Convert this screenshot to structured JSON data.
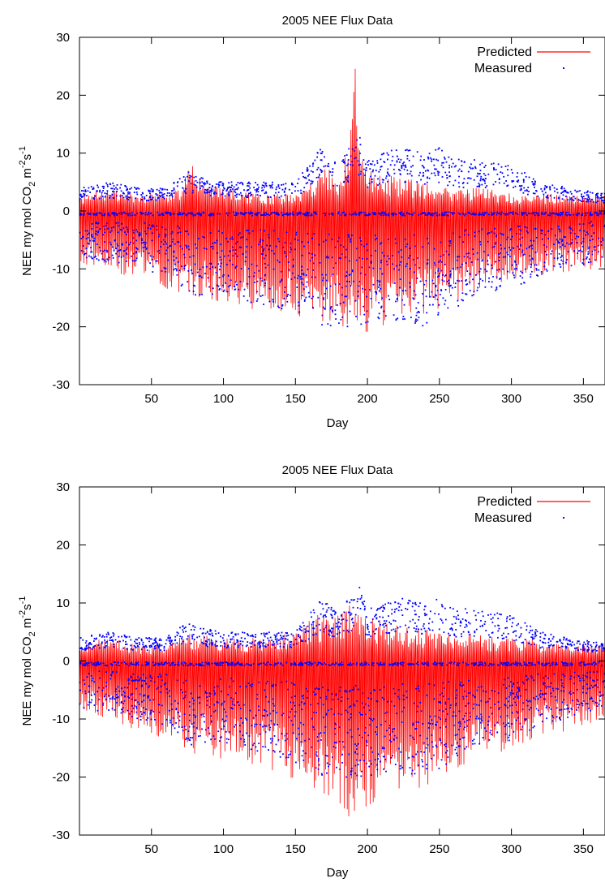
{
  "chart_data": [
    {
      "type": "line",
      "title": "2005 NEE Flux Data",
      "xlabel": "Day",
      "ylabel_parts": {
        "main": "NEE my mol CO",
        "sub": "2",
        "m": " m",
        "msup": "-2",
        "s": "s",
        "ssup": "-1"
      },
      "xlim": [
        0,
        365
      ],
      "ylim": [
        -30,
        30
      ],
      "xticks": [
        50,
        100,
        150,
        200,
        250,
        300,
        350
      ],
      "yticks": [
        -30,
        -20,
        -10,
        0,
        10,
        20,
        30
      ],
      "legend": "top-right",
      "series": [
        {
          "name": "Predicted",
          "kind": "line",
          "color": "#ff0000",
          "daily_max": [
            [
              0,
              3
            ],
            [
              20,
              4
            ],
            [
              40,
              3
            ],
            [
              60,
              3
            ],
            [
              70,
              4
            ],
            [
              75,
              8
            ],
            [
              78,
              9
            ],
            [
              85,
              5
            ],
            [
              100,
              4
            ],
            [
              120,
              3
            ],
            [
              150,
              3
            ],
            [
              160,
              5
            ],
            [
              170,
              8
            ],
            [
              180,
              7
            ],
            [
              188,
              12
            ],
            [
              191,
              30
            ],
            [
              194,
              14
            ],
            [
              200,
              7
            ],
            [
              220,
              6
            ],
            [
              240,
              5
            ],
            [
              260,
              4
            ],
            [
              280,
              4
            ],
            [
              300,
              3
            ],
            [
              320,
              3
            ],
            [
              340,
              3
            ],
            [
              365,
              3
            ]
          ],
          "daily_min": [
            [
              0,
              -9
            ],
            [
              20,
              -10
            ],
            [
              40,
              -12
            ],
            [
              60,
              -14
            ],
            [
              80,
              -15
            ],
            [
              100,
              -16
            ],
            [
              120,
              -17
            ],
            [
              140,
              -18
            ],
            [
              160,
              -19
            ],
            [
              180,
              -20
            ],
            [
              191,
              -23.5
            ],
            [
              200,
              -21
            ],
            [
              220,
              -19
            ],
            [
              240,
              -18
            ],
            [
              260,
              -16
            ],
            [
              280,
              -14
            ],
            [
              300,
              -12
            ],
            [
              320,
              -11
            ],
            [
              340,
              -11
            ],
            [
              365,
              -10
            ]
          ]
        },
        {
          "name": "Measured",
          "kind": "points",
          "color": "#0000ff",
          "daily_max": [
            [
              0,
              4
            ],
            [
              20,
              5
            ],
            [
              40,
              4
            ],
            [
              60,
              4
            ],
            [
              75,
              7
            ],
            [
              80,
              6
            ],
            [
              100,
              5
            ],
            [
              120,
              5
            ],
            [
              150,
              5
            ],
            [
              168,
              11
            ],
            [
              180,
              8
            ],
            [
              190,
              12
            ],
            [
              193,
              14
            ],
            [
              200,
              9
            ],
            [
              220,
              11
            ],
            [
              240,
              10
            ],
            [
              250,
              11
            ],
            [
              260,
              9
            ],
            [
              280,
              9
            ],
            [
              300,
              8
            ],
            [
              320,
              5
            ],
            [
              340,
              4
            ],
            [
              365,
              3
            ]
          ],
          "daily_min": [
            [
              0,
              -8
            ],
            [
              20,
              -9
            ],
            [
              40,
              -10
            ],
            [
              60,
              -11
            ],
            [
              80,
              -15
            ],
            [
              100,
              -14
            ],
            [
              120,
              -16
            ],
            [
              140,
              -17
            ],
            [
              160,
              -18
            ],
            [
              170,
              -20
            ],
            [
              190,
              -20
            ],
            [
              200,
              -20
            ],
            [
              220,
              -19
            ],
            [
              240,
              -20
            ],
            [
              260,
              -17
            ],
            [
              280,
              -14
            ],
            [
              300,
              -14
            ],
            [
              320,
              -11
            ],
            [
              340,
              -10
            ],
            [
              365,
              -8
            ]
          ]
        }
      ]
    },
    {
      "type": "line",
      "title": "2005 NEE Flux Data",
      "xlabel": "Day",
      "ylabel_parts": {
        "main": "NEE my mol CO",
        "sub": "2",
        "m": " m",
        "msup": "-2",
        "s": "s",
        "ssup": "-1"
      },
      "xlim": [
        0,
        365
      ],
      "ylim": [
        -30,
        30
      ],
      "xticks": [
        50,
        100,
        150,
        200,
        250,
        300,
        350
      ],
      "yticks": [
        -30,
        -20,
        -10,
        0,
        10,
        20,
        30
      ],
      "legend": "top-right",
      "series": [
        {
          "name": "Predicted",
          "kind": "line",
          "color": "#ff0000",
          "daily_max": [
            [
              0,
              3
            ],
            [
              20,
              4
            ],
            [
              40,
              3
            ],
            [
              60,
              3
            ],
            [
              75,
              5
            ],
            [
              100,
              4
            ],
            [
              120,
              4
            ],
            [
              150,
              5
            ],
            [
              165,
              8
            ],
            [
              180,
              8
            ],
            [
              190,
              11
            ],
            [
              195,
              9
            ],
            [
              210,
              7
            ],
            [
              230,
              6
            ],
            [
              250,
              5
            ],
            [
              270,
              5
            ],
            [
              290,
              4
            ],
            [
              310,
              4
            ],
            [
              330,
              3
            ],
            [
              365,
              3
            ]
          ],
          "daily_min": [
            [
              0,
              -9
            ],
            [
              20,
              -10
            ],
            [
              40,
              -12
            ],
            [
              60,
              -14
            ],
            [
              80,
              -16
            ],
            [
              100,
              -17
            ],
            [
              120,
              -18
            ],
            [
              140,
              -20
            ],
            [
              160,
              -22
            ],
            [
              175,
              -24
            ],
            [
              191,
              -28
            ],
            [
              200,
              -25
            ],
            [
              220,
              -23
            ],
            [
              240,
              -22
            ],
            [
              260,
              -19
            ],
            [
              280,
              -17
            ],
            [
              300,
              -15
            ],
            [
              320,
              -13
            ],
            [
              340,
              -12
            ],
            [
              365,
              -10
            ]
          ]
        },
        {
          "name": "Measured",
          "kind": "points",
          "color": "#0000ff",
          "daily_max": [
            [
              0,
              4
            ],
            [
              20,
              5
            ],
            [
              40,
              4
            ],
            [
              60,
              4
            ],
            [
              75,
              7
            ],
            [
              80,
              6
            ],
            [
              100,
              5
            ],
            [
              120,
              5
            ],
            [
              150,
              5
            ],
            [
              168,
              11
            ],
            [
              180,
              8
            ],
            [
              190,
              12
            ],
            [
              193,
              14
            ],
            [
              200,
              9
            ],
            [
              220,
              11
            ],
            [
              240,
              10
            ],
            [
              250,
              11
            ],
            [
              260,
              9
            ],
            [
              280,
              9
            ],
            [
              300,
              8
            ],
            [
              320,
              5
            ],
            [
              340,
              4
            ],
            [
              365,
              3
            ]
          ],
          "daily_min": [
            [
              0,
              -8
            ],
            [
              20,
              -9
            ],
            [
              40,
              -10
            ],
            [
              60,
              -11
            ],
            [
              80,
              -15
            ],
            [
              100,
              -14
            ],
            [
              120,
              -16
            ],
            [
              140,
              -17
            ],
            [
              160,
              -18
            ],
            [
              170,
              -20
            ],
            [
              190,
              -20
            ],
            [
              200,
              -20
            ],
            [
              220,
              -19
            ],
            [
              240,
              -20
            ],
            [
              260,
              -17
            ],
            [
              280,
              -14
            ],
            [
              300,
              -14
            ],
            [
              320,
              -11
            ],
            [
              340,
              -10
            ],
            [
              365,
              -8
            ]
          ]
        }
      ]
    }
  ]
}
